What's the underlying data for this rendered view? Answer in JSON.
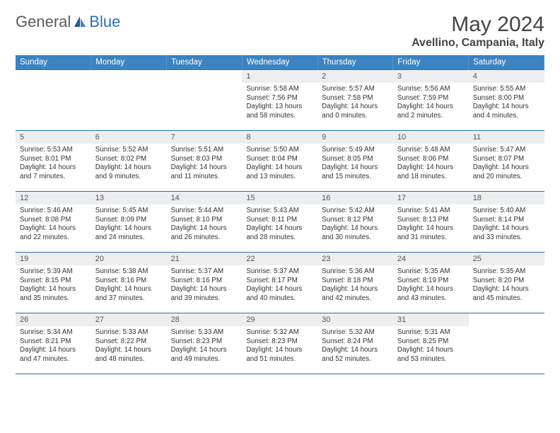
{
  "brand": {
    "name_part1": "General",
    "name_part2": "Blue"
  },
  "title": "May 2024",
  "location": "Avellino, Campania, Italy",
  "colors": {
    "header_bg": "#3b83c2",
    "border": "#2a6fb5",
    "daynum_bg": "#eceef0",
    "text": "#333333",
    "title_text": "#444444",
    "logo_gray": "#5a5a5a"
  },
  "weekdays": [
    "Sunday",
    "Monday",
    "Tuesday",
    "Wednesday",
    "Thursday",
    "Friday",
    "Saturday"
  ],
  "first_day_index": 3,
  "days": [
    {
      "num": "1",
      "sunrise": "5:58 AM",
      "sunset": "7:56 PM",
      "daylight": "13 hours and 58 minutes."
    },
    {
      "num": "2",
      "sunrise": "5:57 AM",
      "sunset": "7:58 PM",
      "daylight": "14 hours and 0 minutes."
    },
    {
      "num": "3",
      "sunrise": "5:56 AM",
      "sunset": "7:59 PM",
      "daylight": "14 hours and 2 minutes."
    },
    {
      "num": "4",
      "sunrise": "5:55 AM",
      "sunset": "8:00 PM",
      "daylight": "14 hours and 4 minutes."
    },
    {
      "num": "5",
      "sunrise": "5:53 AM",
      "sunset": "8:01 PM",
      "daylight": "14 hours and 7 minutes."
    },
    {
      "num": "6",
      "sunrise": "5:52 AM",
      "sunset": "8:02 PM",
      "daylight": "14 hours and 9 minutes."
    },
    {
      "num": "7",
      "sunrise": "5:51 AM",
      "sunset": "8:03 PM",
      "daylight": "14 hours and 11 minutes."
    },
    {
      "num": "8",
      "sunrise": "5:50 AM",
      "sunset": "8:04 PM",
      "daylight": "14 hours and 13 minutes."
    },
    {
      "num": "9",
      "sunrise": "5:49 AM",
      "sunset": "8:05 PM",
      "daylight": "14 hours and 15 minutes."
    },
    {
      "num": "10",
      "sunrise": "5:48 AM",
      "sunset": "8:06 PM",
      "daylight": "14 hours and 18 minutes."
    },
    {
      "num": "11",
      "sunrise": "5:47 AM",
      "sunset": "8:07 PM",
      "daylight": "14 hours and 20 minutes."
    },
    {
      "num": "12",
      "sunrise": "5:46 AM",
      "sunset": "8:08 PM",
      "daylight": "14 hours and 22 minutes."
    },
    {
      "num": "13",
      "sunrise": "5:45 AM",
      "sunset": "8:09 PM",
      "daylight": "14 hours and 24 minutes."
    },
    {
      "num": "14",
      "sunrise": "5:44 AM",
      "sunset": "8:10 PM",
      "daylight": "14 hours and 26 minutes."
    },
    {
      "num": "15",
      "sunrise": "5:43 AM",
      "sunset": "8:11 PM",
      "daylight": "14 hours and 28 minutes."
    },
    {
      "num": "16",
      "sunrise": "5:42 AM",
      "sunset": "8:12 PM",
      "daylight": "14 hours and 30 minutes."
    },
    {
      "num": "17",
      "sunrise": "5:41 AM",
      "sunset": "8:13 PM",
      "daylight": "14 hours and 31 minutes."
    },
    {
      "num": "18",
      "sunrise": "5:40 AM",
      "sunset": "8:14 PM",
      "daylight": "14 hours and 33 minutes."
    },
    {
      "num": "19",
      "sunrise": "5:39 AM",
      "sunset": "8:15 PM",
      "daylight": "14 hours and 35 minutes."
    },
    {
      "num": "20",
      "sunrise": "5:38 AM",
      "sunset": "8:16 PM",
      "daylight": "14 hours and 37 minutes."
    },
    {
      "num": "21",
      "sunrise": "5:37 AM",
      "sunset": "8:16 PM",
      "daylight": "14 hours and 39 minutes."
    },
    {
      "num": "22",
      "sunrise": "5:37 AM",
      "sunset": "8:17 PM",
      "daylight": "14 hours and 40 minutes."
    },
    {
      "num": "23",
      "sunrise": "5:36 AM",
      "sunset": "8:18 PM",
      "daylight": "14 hours and 42 minutes."
    },
    {
      "num": "24",
      "sunrise": "5:35 AM",
      "sunset": "8:19 PM",
      "daylight": "14 hours and 43 minutes."
    },
    {
      "num": "25",
      "sunrise": "5:35 AM",
      "sunset": "8:20 PM",
      "daylight": "14 hours and 45 minutes."
    },
    {
      "num": "26",
      "sunrise": "5:34 AM",
      "sunset": "8:21 PM",
      "daylight": "14 hours and 47 minutes."
    },
    {
      "num": "27",
      "sunrise": "5:33 AM",
      "sunset": "8:22 PM",
      "daylight": "14 hours and 48 minutes."
    },
    {
      "num": "28",
      "sunrise": "5:33 AM",
      "sunset": "8:23 PM",
      "daylight": "14 hours and 49 minutes."
    },
    {
      "num": "29",
      "sunrise": "5:32 AM",
      "sunset": "8:23 PM",
      "daylight": "14 hours and 51 minutes."
    },
    {
      "num": "30",
      "sunrise": "5:32 AM",
      "sunset": "8:24 PM",
      "daylight": "14 hours and 52 minutes."
    },
    {
      "num": "31",
      "sunrise": "5:31 AM",
      "sunset": "8:25 PM",
      "daylight": "14 hours and 53 minutes."
    }
  ],
  "labels": {
    "sunrise": "Sunrise: ",
    "sunset": "Sunset: ",
    "daylight": "Daylight: "
  }
}
